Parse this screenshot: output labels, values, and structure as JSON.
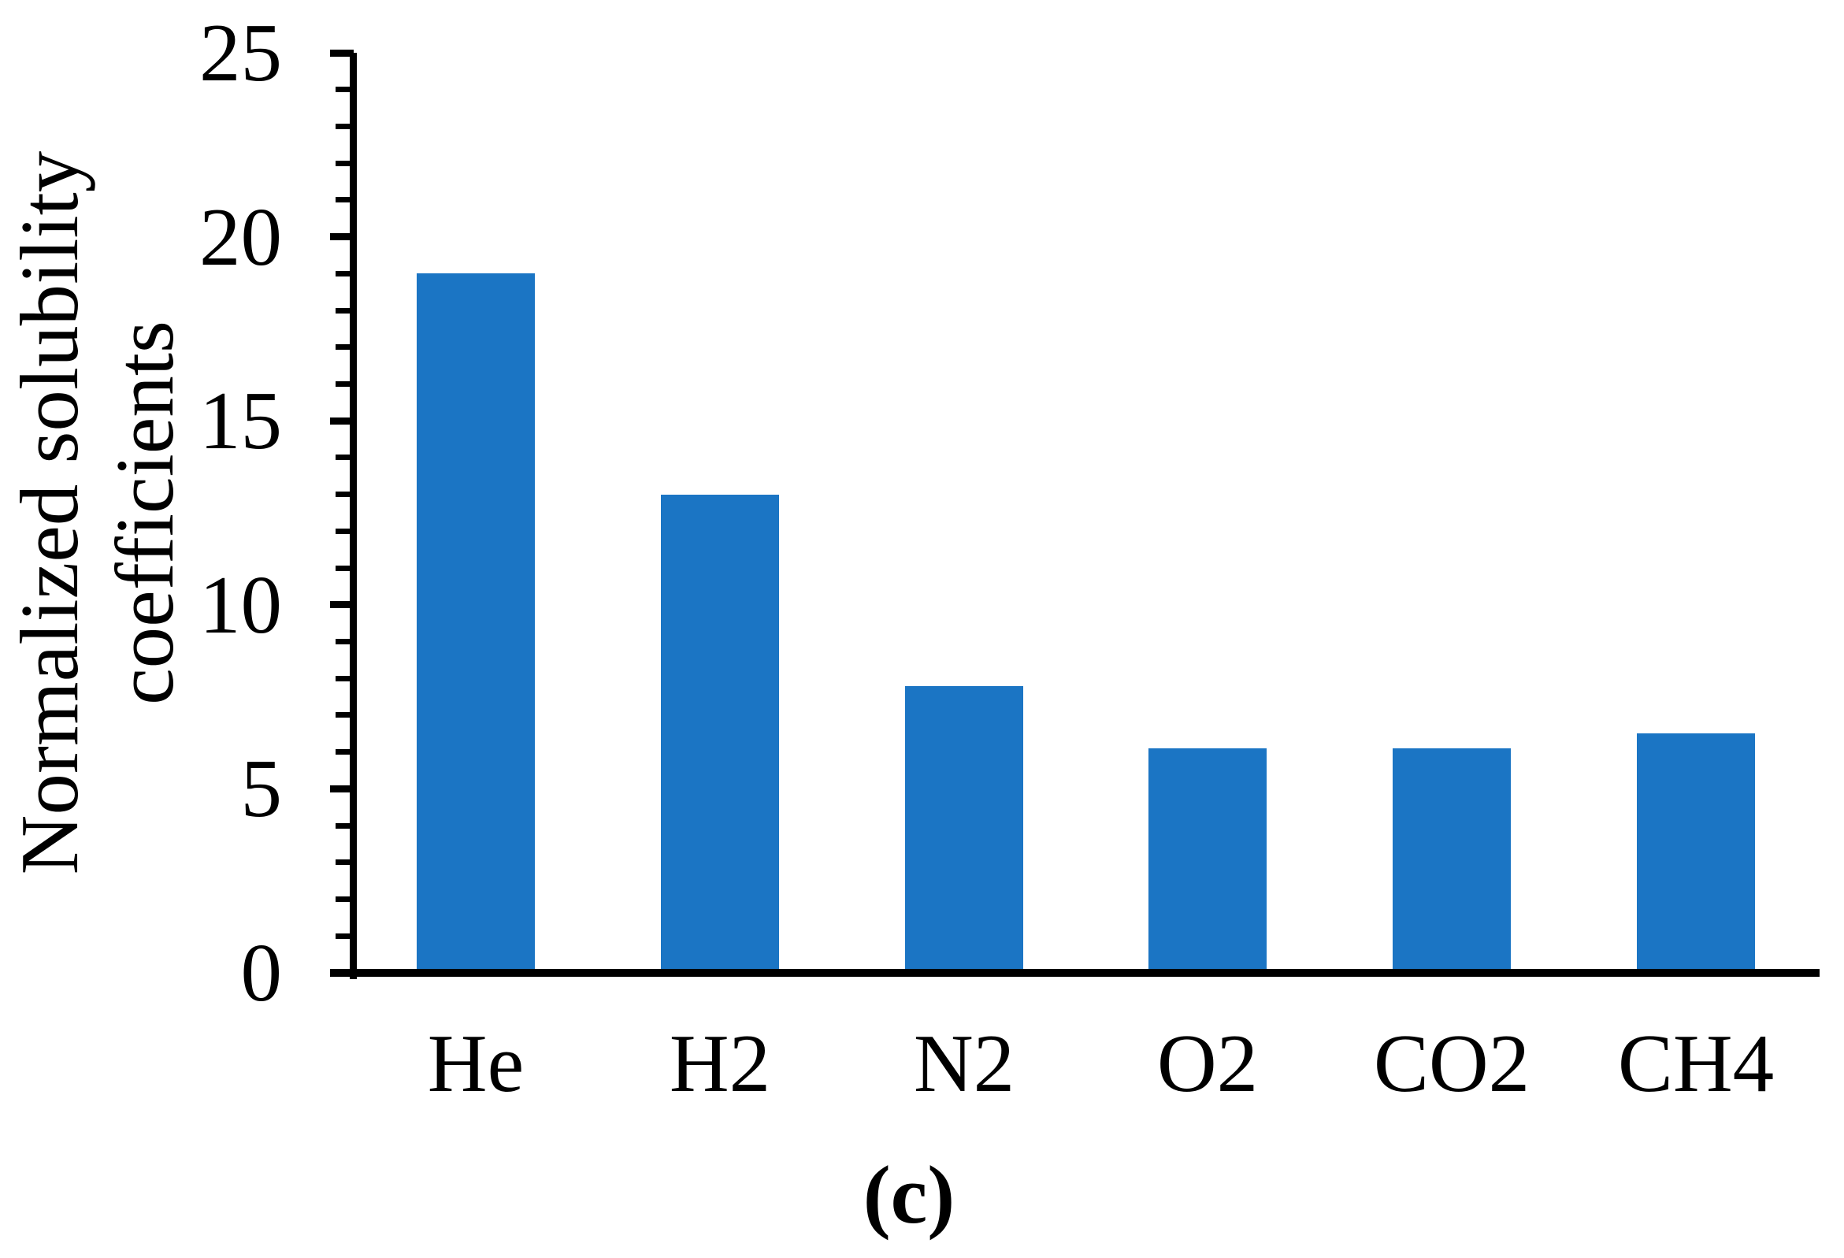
{
  "chart_data": {
    "type": "bar",
    "categories": [
      "He",
      "H2",
      "N2",
      "O2",
      "CO2",
      "CH4"
    ],
    "values": [
      19.0,
      13.0,
      7.8,
      6.1,
      6.1,
      6.5
    ],
    "title": "",
    "xlabel": "",
    "ylabel": "Normalized solubility coefficients",
    "ylabel_lines": [
      "Normalized solubility",
      "coefficients"
    ],
    "caption": "(c)",
    "ylim": [
      0,
      25
    ],
    "yticks": [
      0,
      5,
      10,
      15,
      20,
      25
    ],
    "minor_tick_step": 1,
    "grid": false,
    "legend_position": "none",
    "bar_color": "#1B75C4",
    "axis_color": "#000000"
  }
}
